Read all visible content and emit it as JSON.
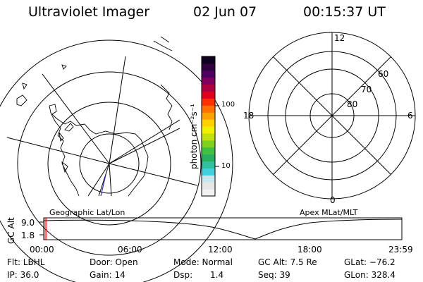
{
  "header": {
    "title": "Ultraviolet Imager",
    "date": "02 Jun 07",
    "time": "00:15:37 UT"
  },
  "left_map": {
    "label": "Geographic Lat/Lon"
  },
  "right_map": {
    "label": "Apex MLat/MLT",
    "mlt_labels": {
      "top": "12",
      "bottom": "0",
      "left": "18",
      "right": "6"
    },
    "lat_labels": [
      "60",
      "70",
      "80"
    ]
  },
  "colorbar": {
    "unit": "photon cm⁻²s⁻¹",
    "ticks": [
      "100",
      "10"
    ],
    "colors": [
      "#f2f2f2",
      "#e6e6e6",
      "#c8e8f0",
      "#40d0e0",
      "#30c0a0",
      "#28b060",
      "#40c040",
      "#80d020",
      "#c0e010",
      "#f0f000",
      "#ffd000",
      "#ffa000",
      "#ff7000",
      "#ff3000",
      "#e00020",
      "#b00040",
      "#800060",
      "#500060",
      "#300040",
      "#100020"
    ]
  },
  "altitude_plot": {
    "axis_label": "GC Alt",
    "y_ticks": [
      "9.0",
      "1.8"
    ],
    "x_ticks": [
      "00:00",
      "06:00",
      "12:00",
      "18:00",
      "23:59"
    ],
    "marker_color": "#e00000"
  },
  "status": {
    "filter": "Flt: LBHL",
    "door": "Door: Open",
    "mode": "Mode: Normal",
    "gc_alt": "GC Alt: 7.5 Re",
    "glat": "GLat: −76.2",
    "ip": "IP: 36.0",
    "gain": "Gain: 14",
    "dsp_label": "Dsp:",
    "dsp_value": "1.4",
    "seq": "Seq: 39",
    "glon": "GLon: 328.4"
  }
}
